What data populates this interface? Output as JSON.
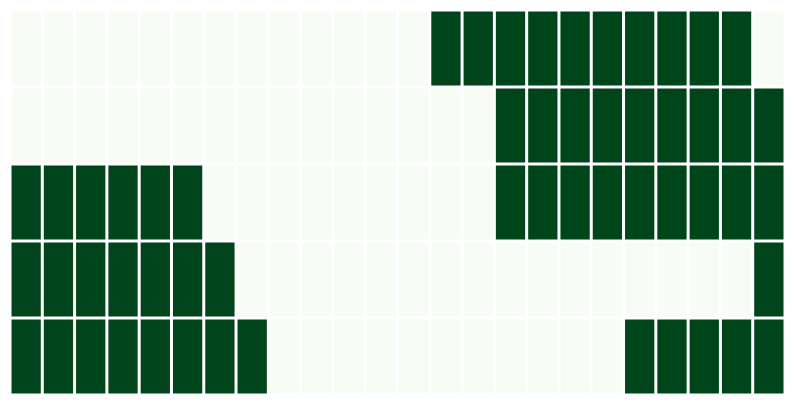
{
  "chart_data": {
    "type": "heatmap",
    "rows": 5,
    "columns": 24,
    "colors": {
      "on": "#00441b",
      "off": "#f7fcf5",
      "background": "#ffffff"
    },
    "values": [
      [
        0,
        0,
        0,
        0,
        0,
        0,
        0,
        0,
        0,
        0,
        0,
        0,
        0,
        1,
        1,
        1,
        1,
        1,
        1,
        1,
        1,
        1,
        1,
        0
      ],
      [
        0,
        0,
        0,
        0,
        0,
        0,
        0,
        0,
        0,
        0,
        0,
        0,
        0,
        0,
        0,
        1,
        1,
        1,
        1,
        1,
        1,
        1,
        1,
        1
      ],
      [
        1,
        1,
        1,
        1,
        1,
        1,
        0,
        0,
        0,
        0,
        0,
        0,
        0,
        0,
        0,
        1,
        1,
        1,
        1,
        1,
        1,
        1,
        1,
        1
      ],
      [
        1,
        1,
        1,
        1,
        1,
        1,
        1,
        0,
        0,
        0,
        0,
        0,
        0,
        0,
        0,
        0,
        0,
        0,
        0,
        0,
        0,
        0,
        0,
        1
      ],
      [
        1,
        1,
        1,
        1,
        1,
        1,
        1,
        1,
        0,
        0,
        0,
        0,
        0,
        0,
        0,
        0,
        0,
        0,
        0,
        1,
        1,
        1,
        1,
        1
      ]
    ],
    "grid": false,
    "legend": "none"
  }
}
